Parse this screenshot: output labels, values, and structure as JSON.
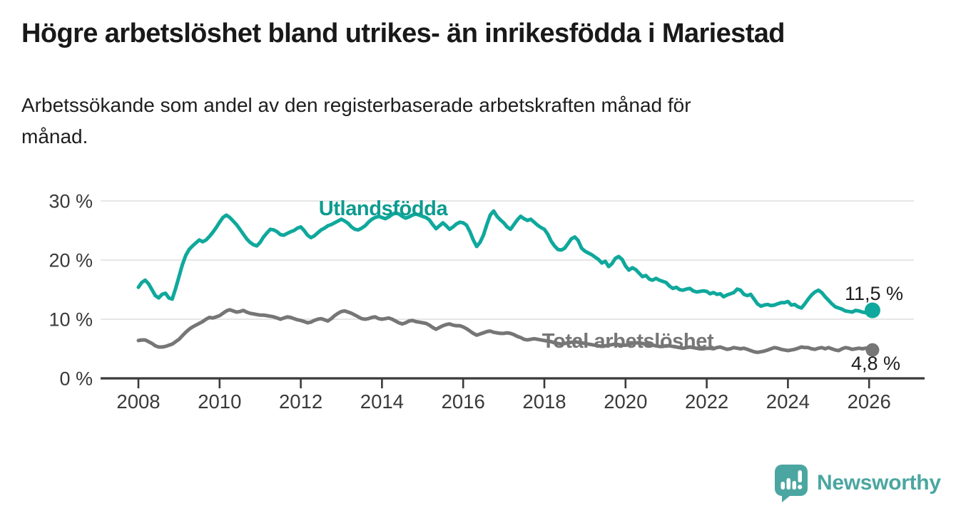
{
  "title": "Högre arbetslöshet bland utrikes- än inrikesfödda i Mariestad",
  "subtitle": {
    "line1": "Arbetssökande som andel av den registerbaserade arbetskraften månad för",
    "line2": "månad."
  },
  "logo": {
    "text": "Newsworthy",
    "color": "#4ba6a1"
  },
  "colors": {
    "foreign_born_line": "#0fa89c",
    "foreign_born_label": "#0d9b90",
    "total_line": "#767676",
    "gridline": "#dedede",
    "axis": "#3a3a3a",
    "tick_text": "#3a3a3a",
    "value_text": "#1d1d1d"
  },
  "chart_data": {
    "type": "line",
    "title": "Högre arbetslöshet bland utrikes- än inrikesfödda i Mariestad",
    "subtitle": "Arbetssökande som andel av den registerbaserade arbetskraften månad för månad.",
    "x_unit": "year (monthly resolution, Jan 2008 – Feb 2026)",
    "y_unit": "percent",
    "xlim": [
      2007.1,
      2027.35
    ],
    "ylim": [
      0,
      33
    ],
    "grid": "horizontal",
    "legend_position": "inline-labels",
    "x_ticks": [
      {
        "value": 2008,
        "label": "2008"
      },
      {
        "value": 2010,
        "label": "2010"
      },
      {
        "value": 2012,
        "label": "2012"
      },
      {
        "value": 2014,
        "label": "2014"
      },
      {
        "value": 2016,
        "label": "2016"
      },
      {
        "value": 2018,
        "label": "2018"
      },
      {
        "value": 2020,
        "label": "2020"
      },
      {
        "value": 2022,
        "label": "2022"
      },
      {
        "value": 2024,
        "label": "2024"
      },
      {
        "value": 2026,
        "label": "2026"
      }
    ],
    "y_ticks": [
      {
        "value": 0,
        "label": "0 %"
      },
      {
        "value": 10,
        "label": "10 %"
      },
      {
        "value": 20,
        "label": "20 %"
      },
      {
        "value": 30,
        "label": "30 %"
      }
    ],
    "series": [
      {
        "name": "Utlandsfödda",
        "color": "#0fa89c",
        "label_color": "#0d9b90",
        "start": "2008-01",
        "freq": "monthly",
        "end_label": "11,5 %",
        "end_value": 11.5,
        "values": [
          15.4,
          16.2,
          16.6,
          16.0,
          15.0,
          14.0,
          13.6,
          14.2,
          14.4,
          13.6,
          13.4,
          15.2,
          17.2,
          19.2,
          20.8,
          21.8,
          22.4,
          22.9,
          23.4,
          23.1,
          23.4,
          24.0,
          24.7,
          25.5,
          26.4,
          27.2,
          27.6,
          27.2,
          26.6,
          26.0,
          25.2,
          24.4,
          23.6,
          23.0,
          22.6,
          22.4,
          23.0,
          23.9,
          24.6,
          25.2,
          25.1,
          24.8,
          24.3,
          24.2,
          24.5,
          24.8,
          25.0,
          25.4,
          25.6,
          25.0,
          24.2,
          23.8,
          24.1,
          24.6,
          25.1,
          25.4,
          25.8,
          26.0,
          26.3,
          26.6,
          26.9,
          26.6,
          26.2,
          25.6,
          25.2,
          25.1,
          25.4,
          25.8,
          26.4,
          26.9,
          27.2,
          27.4,
          27.2,
          27.0,
          27.3,
          27.7,
          28.0,
          27.8,
          27.4,
          27.1,
          27.3,
          27.6,
          27.8,
          27.6,
          27.4,
          27.2,
          26.8,
          26.0,
          25.3,
          25.8,
          26.3,
          25.8,
          25.2,
          25.6,
          26.1,
          26.4,
          26.3,
          25.9,
          24.8,
          23.4,
          22.3,
          23.0,
          24.2,
          26.0,
          27.6,
          28.3,
          27.4,
          26.8,
          26.3,
          25.6,
          25.2,
          26.0,
          26.8,
          27.4,
          27.0,
          26.7,
          26.9,
          26.4,
          25.9,
          25.5,
          25.2,
          24.4,
          23.2,
          22.4,
          21.8,
          21.7,
          22.0,
          22.8,
          23.6,
          23.9,
          23.3,
          22.0,
          21.5,
          21.2,
          20.9,
          20.5,
          20.1,
          19.5,
          19.8,
          18.9,
          19.4,
          20.3,
          20.6,
          20.1,
          19.0,
          18.3,
          18.7,
          18.4,
          17.8,
          17.2,
          17.4,
          16.8,
          16.6,
          16.9,
          16.6,
          16.4,
          16.2,
          15.6,
          15.2,
          15.4,
          15.0,
          14.9,
          15.1,
          15.2,
          14.8,
          14.6,
          14.7,
          14.8,
          14.7,
          14.3,
          14.5,
          14.2,
          14.3,
          13.8,
          14.1,
          14.3,
          14.5,
          15.1,
          14.9,
          14.2,
          14.0,
          14.2,
          13.4,
          12.6,
          12.2,
          12.4,
          12.5,
          12.3,
          12.4,
          12.6,
          12.8,
          12.8,
          13.0,
          12.4,
          12.5,
          12.1,
          11.9,
          12.6,
          13.4,
          14.1,
          14.6,
          14.9,
          14.5,
          13.8,
          13.2,
          12.6,
          12.1,
          11.9,
          11.7,
          11.4,
          11.3,
          11.2,
          11.5,
          11.4,
          11.2,
          11.1,
          11.0,
          11.5
        ]
      },
      {
        "name": "Total arbetslöshet",
        "color": "#767676",
        "label_color": "#767676",
        "start": "2008-01",
        "freq": "monthly",
        "end_label": "4,8 %",
        "end_value": 4.8,
        "values": [
          6.4,
          6.5,
          6.5,
          6.2,
          5.9,
          5.5,
          5.3,
          5.3,
          5.4,
          5.6,
          5.8,
          6.2,
          6.6,
          7.2,
          7.8,
          8.3,
          8.7,
          9.0,
          9.3,
          9.6,
          10.0,
          10.3,
          10.2,
          10.4,
          10.6,
          11.0,
          11.4,
          11.6,
          11.4,
          11.2,
          11.3,
          11.5,
          11.2,
          11.0,
          10.9,
          10.8,
          10.7,
          10.7,
          10.6,
          10.5,
          10.4,
          10.2,
          10.0,
          10.2,
          10.4,
          10.3,
          10.1,
          9.9,
          9.8,
          9.6,
          9.4,
          9.5,
          9.8,
          10.0,
          10.1,
          9.9,
          9.7,
          10.1,
          10.6,
          11.0,
          11.3,
          11.4,
          11.2,
          11.0,
          10.7,
          10.4,
          10.1,
          10.0,
          10.1,
          10.3,
          10.4,
          10.1,
          10.0,
          10.1,
          10.2,
          10.0,
          9.7,
          9.4,
          9.2,
          9.4,
          9.7,
          9.8,
          9.6,
          9.5,
          9.4,
          9.3,
          9.0,
          8.6,
          8.3,
          8.6,
          8.9,
          9.1,
          9.2,
          9.0,
          8.9,
          8.9,
          8.7,
          8.4,
          8.0,
          7.6,
          7.3,
          7.5,
          7.7,
          7.9,
          8.0,
          7.8,
          7.7,
          7.6,
          7.6,
          7.7,
          7.6,
          7.4,
          7.1,
          6.9,
          6.6,
          6.5,
          6.6,
          6.7,
          6.6,
          6.5,
          6.4,
          6.3,
          6.2,
          6.0,
          5.9,
          5.8,
          5.9,
          6.0,
          6.1,
          6.2,
          6.1,
          6.0,
          5.9,
          5.8,
          5.7,
          5.6,
          5.5,
          5.4,
          5.5,
          5.6,
          5.7,
          5.8,
          5.7,
          5.6,
          5.6,
          5.7,
          5.9,
          6.0,
          6.0,
          5.9,
          5.8,
          5.7,
          5.6,
          5.5,
          5.4,
          5.4,
          5.5,
          5.5,
          5.4,
          5.3,
          5.2,
          5.1,
          5.2,
          5.3,
          5.2,
          5.1,
          5.0,
          5.0,
          5.1,
          5.1,
          5.0,
          5.2,
          5.3,
          5.1,
          4.9,
          5.0,
          5.2,
          5.1,
          5.0,
          5.1,
          4.9,
          4.7,
          4.5,
          4.4,
          4.5,
          4.6,
          4.8,
          5.0,
          5.2,
          5.1,
          4.9,
          4.8,
          4.7,
          4.8,
          4.9,
          5.1,
          5.3,
          5.2,
          5.2,
          5.0,
          4.9,
          5.1,
          5.2,
          5.0,
          5.2,
          5.0,
          4.8,
          4.7,
          5.0,
          5.2,
          5.1,
          4.9,
          5.0,
          5.1,
          5.0,
          5.1,
          5.2,
          4.8
        ]
      }
    ]
  }
}
